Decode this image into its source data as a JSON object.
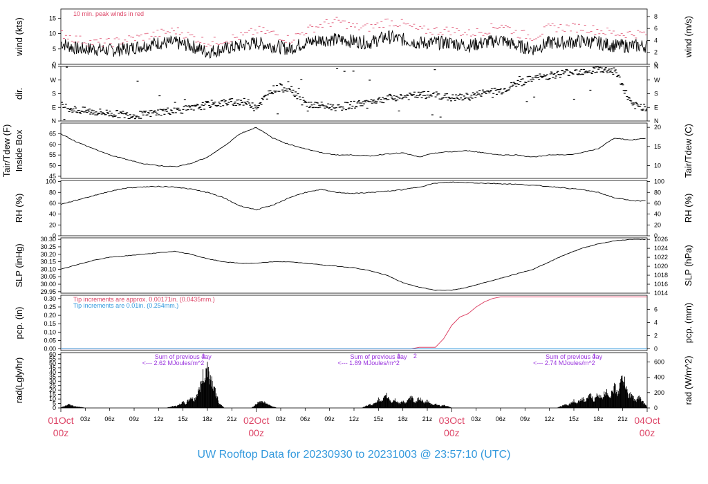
{
  "colors": {
    "accent_red": "#dd4466",
    "accent_blue": "#3399dd",
    "accent_purple": "#9933dd",
    "trace": "#000000"
  },
  "footer": {
    "title": "UW Rooftop Data for 20230930  to  20231003 @ 23:57:10  (UTC)"
  },
  "chart_data": [
    {
      "type": "line",
      "id": "wind",
      "ylabel_left": "wind (kts)",
      "ylabel_right": "wind (m/s)",
      "ylim": [
        0,
        18
      ],
      "yticks_left": [
        "0",
        "5",
        "10",
        "15"
      ],
      "yticks_left_values": [
        0,
        5,
        10,
        15
      ],
      "yticks_right": [
        "0",
        "2",
        "4",
        "6",
        "8"
      ],
      "yticks_right_values": [
        0,
        3.89,
        7.78,
        11.66,
        15.55
      ],
      "note": "10 min. peak winds in red",
      "series": [
        {
          "style": "line",
          "x": [
            0,
            2,
            4,
            6,
            8,
            10,
            12,
            14,
            16,
            18,
            20,
            22,
            24,
            26,
            28,
            30,
            32,
            34,
            36,
            38,
            40,
            42,
            44,
            46,
            48,
            50,
            52,
            54,
            56,
            58,
            60,
            62,
            64,
            66,
            68,
            70,
            72
          ],
          "values": [
            7,
            5,
            5,
            4.5,
            5,
            6,
            7,
            7,
            6,
            4,
            5,
            6,
            7,
            6,
            5,
            7,
            8,
            8,
            7.5,
            7,
            9,
            8,
            7,
            7,
            7,
            6,
            7,
            8,
            6,
            5,
            7,
            7,
            7.5,
            7,
            6,
            6,
            6
          ]
        },
        {
          "style": "peak",
          "x": [
            0,
            2,
            4,
            6,
            8,
            10,
            12,
            14,
            16,
            18,
            20,
            22,
            24,
            26,
            28,
            30,
            32,
            34,
            36,
            38,
            40,
            42,
            44,
            46,
            48,
            50,
            52,
            54,
            56,
            58,
            60,
            62,
            64,
            66,
            68,
            70,
            72
          ],
          "values": [
            10,
            8,
            7,
            7,
            8,
            9,
            10,
            11,
            9,
            7,
            8,
            9,
            11,
            10,
            8,
            11,
            13,
            14,
            12,
            12,
            14,
            13,
            11,
            11,
            11,
            10,
            11,
            13,
            10,
            9,
            12,
            12,
            12,
            11,
            10,
            10,
            10
          ]
        }
      ]
    },
    {
      "type": "scatter",
      "id": "dir",
      "ylabel_left": "dir.",
      "ylabel_right": "",
      "ylim": [
        0,
        360
      ],
      "yticks_left": [
        "N",
        "E",
        "S",
        "W",
        "N"
      ],
      "yticks_left_values": [
        0,
        90,
        180,
        270,
        360
      ],
      "yticks_right": [
        "N",
        "E",
        "S",
        "W",
        "N"
      ],
      "yticks_right_values": [
        0,
        90,
        180,
        270,
        360
      ],
      "series": [
        {
          "x": [
            0,
            2,
            4,
            6,
            8,
            10,
            12,
            14,
            16,
            18,
            20,
            22,
            24,
            26,
            28,
            30,
            32,
            34,
            36,
            38,
            40,
            42,
            44,
            46,
            48,
            50,
            52,
            54,
            56,
            58,
            60,
            62,
            64,
            66,
            68,
            70,
            72
          ],
          "values": [
            100,
            70,
            60,
            50,
            40,
            40,
            60,
            70,
            80,
            110,
            120,
            130,
            100,
            210,
            220,
            110,
            100,
            90,
            110,
            130,
            150,
            160,
            170,
            170,
            150,
            160,
            190,
            200,
            250,
            280,
            300,
            320,
            330,
            340,
            330,
            100,
            90
          ]
        }
      ]
    },
    {
      "type": "line",
      "id": "temp",
      "ylabel_left": "Inside Box",
      "ylabel_right": "Tair/Tdew (C)",
      "outer_label": "Tair/Tdew (F)",
      "ylim": [
        44,
        70
      ],
      "yticks_left": [
        "45",
        "50",
        "55",
        "60",
        "65"
      ],
      "yticks_left_values": [
        45,
        50,
        55,
        60,
        65
      ],
      "yticks_right": [
        "10",
        "15",
        "20"
      ],
      "yticks_right_values": [
        50,
        59,
        68
      ],
      "series": [
        {
          "x": [
            0,
            2,
            4,
            6,
            8,
            10,
            12,
            14,
            16,
            18,
            20,
            22,
            24,
            26,
            28,
            30,
            32,
            34,
            36,
            38,
            40,
            42,
            44,
            46,
            48,
            50,
            52,
            54,
            56,
            58,
            60,
            62,
            64,
            66,
            68,
            70,
            72
          ],
          "values": [
            65,
            61,
            58,
            55,
            53,
            51,
            50,
            49.5,
            51,
            54,
            59,
            65,
            68,
            63,
            60,
            58,
            56,
            55,
            55,
            54.5,
            55.5,
            56,
            54,
            56,
            56.5,
            57,
            56,
            55,
            55,
            54,
            55,
            55,
            56,
            58,
            63,
            62,
            63
          ]
        }
      ]
    },
    {
      "type": "line",
      "id": "rh",
      "ylabel_left": "RH (%)",
      "ylabel_right": "RH (%)",
      "ylim": [
        0,
        102
      ],
      "yticks_left": [
        "0",
        "20",
        "40",
        "60",
        "80",
        "100"
      ],
      "yticks_left_values": [
        0,
        20,
        40,
        60,
        80,
        100
      ],
      "yticks_right": [
        "0",
        "20",
        "40",
        "60",
        "80",
        "100"
      ],
      "yticks_right_values": [
        0,
        20,
        40,
        60,
        80,
        100
      ],
      "series": [
        {
          "x": [
            0,
            2,
            4,
            6,
            8,
            10,
            12,
            14,
            16,
            18,
            20,
            22,
            24,
            26,
            28,
            30,
            32,
            34,
            36,
            38,
            40,
            42,
            44,
            46,
            48,
            50,
            52,
            54,
            56,
            58,
            60,
            62,
            64,
            66,
            68,
            70,
            72
          ],
          "values": [
            58,
            66,
            74,
            82,
            88,
            90,
            91,
            90,
            86,
            80,
            70,
            55,
            48,
            56,
            70,
            80,
            85,
            80,
            78,
            80,
            82,
            85,
            90,
            97,
            99,
            98,
            97,
            96,
            95,
            93,
            91,
            88,
            85,
            80,
            70,
            65,
            64
          ]
        }
      ]
    },
    {
      "type": "line",
      "id": "slp",
      "ylabel_left": "SLP (inHg)",
      "ylabel_right": "SLP (hPa)",
      "ylim": [
        29.94,
        30.31
      ],
      "yticks_left": [
        "29.95",
        "30.00",
        "30.05",
        "30.10",
        "30.15",
        "30.20",
        "30.25",
        "30.30"
      ],
      "yticks_left_values": [
        29.95,
        30.0,
        30.05,
        30.1,
        30.15,
        30.2,
        30.25,
        30.3
      ],
      "yticks_right": [
        "1014",
        "1016",
        "1018",
        "1020",
        "1022",
        "1024",
        "1026"
      ],
      "yticks_right_values": [
        29.94,
        30.0,
        30.06,
        30.12,
        30.18,
        30.24,
        30.3
      ],
      "series": [
        {
          "x": [
            0,
            2,
            4,
            6,
            8,
            10,
            12,
            14,
            16,
            18,
            20,
            22,
            24,
            26,
            28,
            30,
            32,
            34,
            36,
            38,
            40,
            42,
            44,
            46,
            48,
            50,
            52,
            54,
            56,
            58,
            60,
            62,
            64,
            66,
            68,
            70,
            72
          ],
          "values": [
            30.1,
            30.13,
            30.16,
            30.18,
            30.19,
            30.2,
            30.21,
            30.22,
            30.2,
            30.17,
            30.15,
            30.14,
            30.14,
            30.15,
            30.15,
            30.14,
            30.13,
            30.12,
            30.11,
            30.09,
            30.06,
            30.01,
            29.98,
            29.96,
            29.96,
            29.98,
            30.01,
            30.04,
            30.07,
            30.1,
            30.15,
            30.2,
            30.24,
            30.27,
            30.29,
            30.3,
            30.3
          ]
        }
      ]
    },
    {
      "type": "line",
      "id": "pcp",
      "ylabel_left": "pcp. (in)",
      "ylabel_right": "pcp. (mm)",
      "ylim": [
        -0.01,
        0.32
      ],
      "yticks_left": [
        "0.00",
        "0.05",
        "0.10",
        "0.15",
        "0.20",
        "0.25",
        "0.30"
      ],
      "yticks_left_values": [
        0,
        0.05,
        0.1,
        0.15,
        0.2,
        0.25,
        0.3
      ],
      "yticks_right": [
        "0",
        "2",
        "4",
        "6"
      ],
      "yticks_right_values": [
        0,
        0.0787,
        0.1575,
        0.2362
      ],
      "note_red": "Tip increments are approx. 0.00171in. (0.0435mm.)",
      "note_blue": "Tip increments are 0.01in. (0.254mm.)",
      "series": [
        {
          "x": [
            0,
            43,
            44,
            46,
            47,
            48,
            49,
            50,
            51,
            52,
            53,
            54,
            55,
            72
          ],
          "values": [
            0,
            0,
            0.01,
            0.01,
            0.06,
            0.14,
            0.19,
            0.21,
            0.25,
            0.28,
            0.3,
            0.31,
            0.31,
            0.31
          ]
        }
      ]
    },
    {
      "type": "bar",
      "id": "rad",
      "ylabel_left": "rad(Lgly/hr)",
      "ylabel_right": "rad (W/m^2)",
      "ylim": [
        0,
        62
      ],
      "yticks_left": [
        "0",
        "5",
        "10",
        "15",
        "20",
        "25",
        "30",
        "35",
        "40",
        "45",
        "50",
        "55",
        "60"
      ],
      "yticks_left_values": [
        0,
        5,
        10,
        15,
        20,
        25,
        30,
        35,
        40,
        45,
        50,
        55,
        60
      ],
      "yticks_right": [
        "0",
        "200",
        "400",
        "600"
      ],
      "yticks_right_values": [
        0,
        17.2,
        34.4,
        51.6
      ],
      "annotations": [
        {
          "text": "Sum of previous day",
          "x": 10
        },
        {
          "text": "<--- 2.62 MJoules/m^2",
          "x": 10
        },
        {
          "text": "Sum of previous day",
          "x": 34
        },
        {
          "text": "<--- 1.89 MJoules/m^2",
          "x": 34
        },
        {
          "text": "Sum of previous day",
          "x": 58
        },
        {
          "text": "<--- 2.74 MJoules/m^2",
          "x": 58
        }
      ],
      "markers": [
        {
          "text": "1",
          "x": 17.5
        },
        {
          "text": "1",
          "x": 41.5
        },
        {
          "text": "2",
          "x": 43.5
        },
        {
          "text": "1",
          "x": 65.5
        }
      ],
      "series": [
        {
          "x": [
            1,
            1.5,
            2,
            14,
            15,
            16,
            17,
            17.5,
            18,
            18.5,
            19,
            24.5,
            25,
            25.5,
            38,
            39,
            40,
            41,
            42,
            43,
            44,
            45,
            46,
            47,
            62,
            63,
            64,
            65,
            66,
            67,
            68,
            69,
            70,
            71
          ],
          "values": [
            5,
            3,
            2,
            3,
            8,
            15,
            25,
            45,
            60,
            40,
            10,
            10,
            8,
            4,
            5,
            12,
            18,
            12,
            10,
            15,
            14,
            10,
            6,
            4,
            5,
            10,
            14,
            18,
            20,
            25,
            30,
            45,
            20,
            15
          ]
        }
      ]
    }
  ],
  "x_axis": {
    "hour_labels": [
      {
        "t": 3,
        "label": "03z"
      },
      {
        "t": 6,
        "label": "06z"
      },
      {
        "t": 9,
        "label": "09z"
      },
      {
        "t": 12,
        "label": "12z"
      },
      {
        "t": 15,
        "label": "15z"
      },
      {
        "t": 18,
        "label": "18z"
      },
      {
        "t": 21,
        "label": "21z"
      },
      {
        "t": 27,
        "label": "03z"
      },
      {
        "t": 30,
        "label": "06z"
      },
      {
        "t": 33,
        "label": "09z"
      },
      {
        "t": 36,
        "label": "12z"
      },
      {
        "t": 39,
        "label": "15z"
      },
      {
        "t": 42,
        "label": "18z"
      },
      {
        "t": 45,
        "label": "21z"
      },
      {
        "t": 51,
        "label": "03z"
      },
      {
        "t": 54,
        "label": "06z"
      },
      {
        "t": 57,
        "label": "09z"
      },
      {
        "t": 60,
        "label": "12z"
      },
      {
        "t": 63,
        "label": "15z"
      },
      {
        "t": 66,
        "label": "18z"
      },
      {
        "t": 69,
        "label": "21z"
      }
    ],
    "day_labels": [
      {
        "t": 0,
        "date": "01Oct",
        "hour": "00z"
      },
      {
        "t": 24,
        "date": "02Oct",
        "hour": "00z"
      },
      {
        "t": 48,
        "date": "03Oct",
        "hour": "00z"
      },
      {
        "t": 72,
        "date": "04Oct",
        "hour": "00z"
      }
    ]
  }
}
